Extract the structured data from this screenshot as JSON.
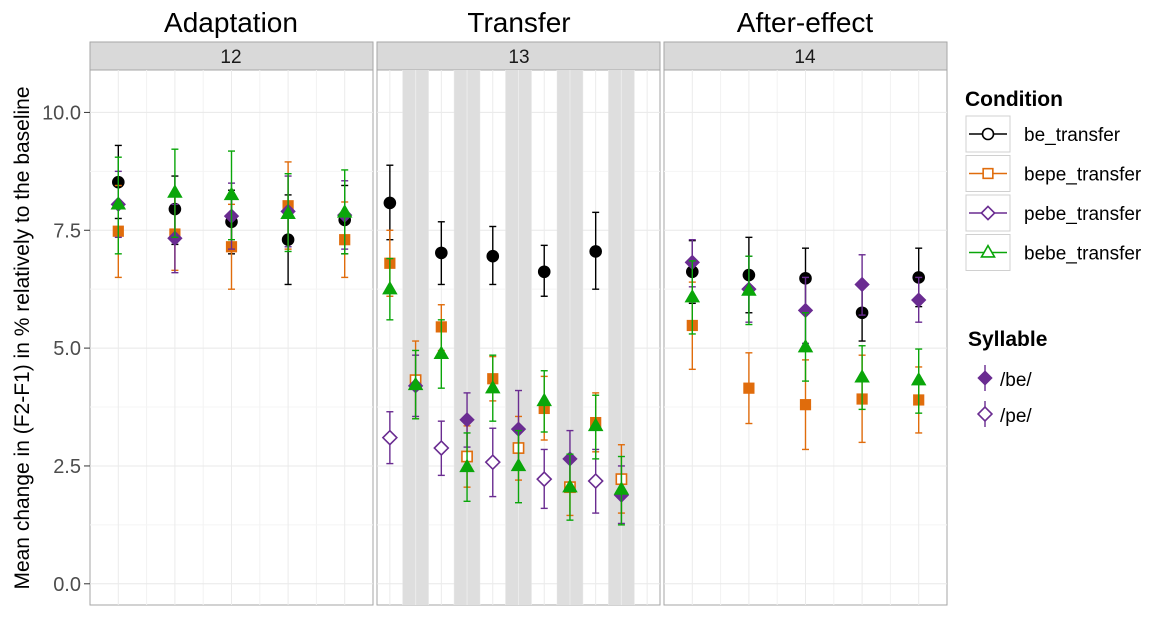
{
  "chart_data": {
    "type": "scatter",
    "ylabel": "Mean change in (F2-F1) in % relatively to the baseline",
    "ylim": [
      -0.45,
      10.9
    ],
    "y_ticks": [
      0.0,
      2.5,
      5.0,
      7.5,
      10.0
    ],
    "y_tick_labels": [
      "0.0",
      "2.5",
      "5.0",
      "7.5",
      "10.0"
    ],
    "grid": true,
    "panels": [
      {
        "title": "Adaptation",
        "strip": "12",
        "n_positions": 5,
        "shaded_positions": [],
        "points": [
          {
            "cond": "be_transfer",
            "syll": "/be/",
            "pos": 1,
            "y": 8.52,
            "lo": 7.75,
            "hi": 9.3
          },
          {
            "cond": "be_transfer",
            "syll": "/be/",
            "pos": 2,
            "y": 7.95,
            "lo": 7.2,
            "hi": 8.65
          },
          {
            "cond": "be_transfer",
            "syll": "/be/",
            "pos": 3,
            "y": 7.68,
            "lo": 7.0,
            "hi": 8.35
          },
          {
            "cond": "be_transfer",
            "syll": "/be/",
            "pos": 4,
            "y": 7.3,
            "lo": 6.35,
            "hi": 8.25
          },
          {
            "cond": "be_transfer",
            "syll": "/be/",
            "pos": 5,
            "y": 7.72,
            "lo": 7.0,
            "hi": 8.45
          },
          {
            "cond": "bepe_transfer",
            "syll": "/be/",
            "pos": 1,
            "y": 7.48,
            "lo": 6.5,
            "hi": 8.45
          },
          {
            "cond": "bepe_transfer",
            "syll": "/be/",
            "pos": 2,
            "y": 7.42,
            "lo": 6.65,
            "hi": 8.25
          },
          {
            "cond": "bepe_transfer",
            "syll": "/be/",
            "pos": 3,
            "y": 7.15,
            "lo": 6.25,
            "hi": 8.05
          },
          {
            "cond": "bepe_transfer",
            "syll": "/be/",
            "pos": 4,
            "y": 8.02,
            "lo": 7.1,
            "hi": 8.95
          },
          {
            "cond": "bepe_transfer",
            "syll": "/be/",
            "pos": 5,
            "y": 7.3,
            "lo": 6.5,
            "hi": 8.1
          },
          {
            "cond": "pebe_transfer",
            "syll": "/be/",
            "pos": 1,
            "y": 8.05,
            "lo": 7.35,
            "hi": 8.75
          },
          {
            "cond": "pebe_transfer",
            "syll": "/be/",
            "pos": 2,
            "y": 7.33,
            "lo": 6.6,
            "hi": 8.05
          },
          {
            "cond": "pebe_transfer",
            "syll": "/be/",
            "pos": 3,
            "y": 7.8,
            "lo": 7.1,
            "hi": 8.5
          },
          {
            "cond": "pebe_transfer",
            "syll": "/be/",
            "pos": 4,
            "y": 7.9,
            "lo": 7.15,
            "hi": 8.65
          },
          {
            "cond": "pebe_transfer",
            "syll": "/be/",
            "pos": 5,
            "y": 7.82,
            "lo": 7.1,
            "hi": 8.55
          },
          {
            "cond": "bebe_transfer",
            "syll": "/be/",
            "pos": 1,
            "y": 8.05,
            "lo": 7.0,
            "hi": 9.05
          },
          {
            "cond": "bebe_transfer",
            "syll": "/be/",
            "pos": 2,
            "y": 8.3,
            "lo": 7.35,
            "hi": 9.22
          },
          {
            "cond": "bebe_transfer",
            "syll": "/be/",
            "pos": 3,
            "y": 8.25,
            "lo": 7.3,
            "hi": 9.18
          },
          {
            "cond": "bebe_transfer",
            "syll": "/be/",
            "pos": 4,
            "y": 7.85,
            "lo": 7.05,
            "hi": 8.7
          },
          {
            "cond": "bebe_transfer",
            "syll": "/be/",
            "pos": 5,
            "y": 7.88,
            "lo": 7.0,
            "hi": 8.78
          }
        ]
      },
      {
        "title": "Transfer",
        "strip": "13",
        "n_positions": 11,
        "shaded_positions": [
          2,
          4,
          6,
          8,
          10
        ],
        "points": [
          {
            "cond": "be_transfer",
            "syll": "/be/",
            "pos": 1,
            "y": 8.08,
            "lo": 7.3,
            "hi": 8.88
          },
          {
            "cond": "be_transfer",
            "syll": "/be/",
            "pos": 3,
            "y": 7.02,
            "lo": 6.35,
            "hi": 7.68
          },
          {
            "cond": "be_transfer",
            "syll": "/be/",
            "pos": 5,
            "y": 6.95,
            "lo": 6.35,
            "hi": 7.58
          },
          {
            "cond": "be_transfer",
            "syll": "/be/",
            "pos": 7,
            "y": 6.62,
            "lo": 6.1,
            "hi": 7.18
          },
          {
            "cond": "be_transfer",
            "syll": "/be/",
            "pos": 9,
            "y": 7.05,
            "lo": 6.25,
            "hi": 7.88
          },
          {
            "cond": "bepe_transfer",
            "syll": "/be/",
            "pos": 1,
            "y": 6.8,
            "lo": 6.1,
            "hi": 7.5
          },
          {
            "cond": "bepe_transfer",
            "syll": "/pe/",
            "pos": 2,
            "y": 4.32,
            "lo": 3.5,
            "hi": 5.15
          },
          {
            "cond": "bepe_transfer",
            "syll": "/be/",
            "pos": 3,
            "y": 5.45,
            "lo": 4.95,
            "hi": 5.92
          },
          {
            "cond": "bepe_transfer",
            "syll": "/pe/",
            "pos": 4,
            "y": 2.7,
            "lo": 2.05,
            "hi": 3.35
          },
          {
            "cond": "bepe_transfer",
            "syll": "/be/",
            "pos": 5,
            "y": 4.35,
            "lo": 3.88,
            "hi": 4.82
          },
          {
            "cond": "bepe_transfer",
            "syll": "/pe/",
            "pos": 6,
            "y": 2.88,
            "lo": 2.2,
            "hi": 3.55
          },
          {
            "cond": "bepe_transfer",
            "syll": "/be/",
            "pos": 7,
            "y": 3.72,
            "lo": 3.05,
            "hi": 4.4
          },
          {
            "cond": "bepe_transfer",
            "syll": "/pe/",
            "pos": 8,
            "y": 2.05,
            "lo": 1.45,
            "hi": 2.65
          },
          {
            "cond": "bepe_transfer",
            "syll": "/be/",
            "pos": 9,
            "y": 3.42,
            "lo": 2.8,
            "hi": 4.05
          },
          {
            "cond": "bepe_transfer",
            "syll": "/pe/",
            "pos": 10,
            "y": 2.22,
            "lo": 1.5,
            "hi": 2.95
          },
          {
            "cond": "pebe_transfer",
            "syll": "/pe/",
            "pos": 1,
            "y": 3.1,
            "lo": 2.55,
            "hi": 3.65
          },
          {
            "cond": "pebe_transfer",
            "syll": "/be/",
            "pos": 2,
            "y": 4.2,
            "lo": 3.55,
            "hi": 4.85
          },
          {
            "cond": "pebe_transfer",
            "syll": "/pe/",
            "pos": 3,
            "y": 2.88,
            "lo": 2.3,
            "hi": 3.45
          },
          {
            "cond": "pebe_transfer",
            "syll": "/be/",
            "pos": 4,
            "y": 3.48,
            "lo": 2.9,
            "hi": 4.05
          },
          {
            "cond": "pebe_transfer",
            "syll": "/pe/",
            "pos": 5,
            "y": 2.58,
            "lo": 1.85,
            "hi": 3.3
          },
          {
            "cond": "pebe_transfer",
            "syll": "/be/",
            "pos": 6,
            "y": 3.28,
            "lo": 2.45,
            "hi": 4.1
          },
          {
            "cond": "pebe_transfer",
            "syll": "/pe/",
            "pos": 7,
            "y": 2.22,
            "lo": 1.6,
            "hi": 2.85
          },
          {
            "cond": "pebe_transfer",
            "syll": "/be/",
            "pos": 8,
            "y": 2.65,
            "lo": 2.05,
            "hi": 3.25
          },
          {
            "cond": "pebe_transfer",
            "syll": "/pe/",
            "pos": 9,
            "y": 2.18,
            "lo": 1.5,
            "hi": 2.85
          },
          {
            "cond": "pebe_transfer",
            "syll": "/be/",
            "pos": 10,
            "y": 1.88,
            "lo": 1.28,
            "hi": 2.5
          },
          {
            "cond": "bebe_transfer",
            "syll": "/be/",
            "pos": 1,
            "y": 6.25,
            "lo": 5.6,
            "hi": 6.9
          },
          {
            "cond": "bebe_transfer",
            "syll": "/be/",
            "pos": 2,
            "y": 4.22,
            "lo": 3.5,
            "hi": 4.95
          },
          {
            "cond": "bebe_transfer",
            "syll": "/be/",
            "pos": 3,
            "y": 4.88,
            "lo": 4.15,
            "hi": 5.6
          },
          {
            "cond": "bebe_transfer",
            "syll": "/be/",
            "pos": 4,
            "y": 2.48,
            "lo": 1.75,
            "hi": 3.2
          },
          {
            "cond": "bebe_transfer",
            "syll": "/be/",
            "pos": 5,
            "y": 4.15,
            "lo": 3.45,
            "hi": 4.85
          },
          {
            "cond": "bebe_transfer",
            "syll": "/be/",
            "pos": 6,
            "y": 2.5,
            "lo": 1.72,
            "hi": 3.25
          },
          {
            "cond": "bebe_transfer",
            "syll": "/be/",
            "pos": 7,
            "y": 3.88,
            "lo": 3.22,
            "hi": 4.52
          },
          {
            "cond": "bebe_transfer",
            "syll": "/be/",
            "pos": 8,
            "y": 2.05,
            "lo": 1.35,
            "hi": 2.75
          },
          {
            "cond": "bebe_transfer",
            "syll": "/be/",
            "pos": 9,
            "y": 3.35,
            "lo": 2.65,
            "hi": 4.0
          },
          {
            "cond": "bebe_transfer",
            "syll": "/be/",
            "pos": 10,
            "y": 2.0,
            "lo": 1.25,
            "hi": 2.7
          }
        ]
      },
      {
        "title": "After-effect",
        "strip": "14",
        "n_positions": 5,
        "shaded_positions": [],
        "points": [
          {
            "cond": "be_transfer",
            "syll": "/be/",
            "pos": 1,
            "y": 6.62,
            "lo": 5.95,
            "hi": 7.28
          },
          {
            "cond": "be_transfer",
            "syll": "/be/",
            "pos": 2,
            "y": 6.55,
            "lo": 5.75,
            "hi": 7.35
          },
          {
            "cond": "be_transfer",
            "syll": "/be/",
            "pos": 3,
            "y": 6.48,
            "lo": 5.85,
            "hi": 7.12
          },
          {
            "cond": "be_transfer",
            "syll": "/be/",
            "pos": 4,
            "y": 5.75,
            "lo": 5.15,
            "hi": 6.35
          },
          {
            "cond": "be_transfer",
            "syll": "/be/",
            "pos": 5,
            "y": 6.5,
            "lo": 5.88,
            "hi": 7.12
          },
          {
            "cond": "bepe_transfer",
            "syll": "/be/",
            "pos": 1,
            "y": 5.48,
            "lo": 4.55,
            "hi": 6.4
          },
          {
            "cond": "bepe_transfer",
            "syll": "/be/",
            "pos": 2,
            "y": 4.15,
            "lo": 3.4,
            "hi": 4.9
          },
          {
            "cond": "bepe_transfer",
            "syll": "/be/",
            "pos": 3,
            "y": 3.8,
            "lo": 2.85,
            "hi": 4.75
          },
          {
            "cond": "bepe_transfer",
            "syll": "/be/",
            "pos": 4,
            "y": 3.92,
            "lo": 3.0,
            "hi": 4.85
          },
          {
            "cond": "bepe_transfer",
            "syll": "/be/",
            "pos": 5,
            "y": 3.9,
            "lo": 3.2,
            "hi": 4.6
          },
          {
            "cond": "pebe_transfer",
            "syll": "/be/",
            "pos": 1,
            "y": 6.82,
            "lo": 6.3,
            "hi": 7.3
          },
          {
            "cond": "pebe_transfer",
            "syll": "/be/",
            "pos": 2,
            "y": 6.25,
            "lo": 5.55,
            "hi": 6.95
          },
          {
            "cond": "pebe_transfer",
            "syll": "/be/",
            "pos": 3,
            "y": 5.8,
            "lo": 5.1,
            "hi": 6.5
          },
          {
            "cond": "pebe_transfer",
            "syll": "/be/",
            "pos": 4,
            "y": 6.35,
            "lo": 5.7,
            "hi": 6.98
          },
          {
            "cond": "pebe_transfer",
            "syll": "/be/",
            "pos": 5,
            "y": 6.02,
            "lo": 5.55,
            "hi": 6.5
          },
          {
            "cond": "bebe_transfer",
            "syll": "/be/",
            "pos": 1,
            "y": 6.08,
            "lo": 5.3,
            "hi": 6.85
          },
          {
            "cond": "bebe_transfer",
            "syll": "/be/",
            "pos": 2,
            "y": 6.22,
            "lo": 5.5,
            "hi": 6.95
          },
          {
            "cond": "bebe_transfer",
            "syll": "/be/",
            "pos": 3,
            "y": 5.02,
            "lo": 4.3,
            "hi": 5.75
          },
          {
            "cond": "bebe_transfer",
            "syll": "/be/",
            "pos": 4,
            "y": 4.38,
            "lo": 3.7,
            "hi": 5.05
          },
          {
            "cond": "bebe_transfer",
            "syll": "/be/",
            "pos": 5,
            "y": 4.32,
            "lo": 3.62,
            "hi": 4.98
          }
        ]
      }
    ],
    "legend": {
      "placement": "right",
      "condition_title": "Condition",
      "conditions": [
        {
          "name": "be_transfer",
          "color": "#000000",
          "shape": "circle"
        },
        {
          "name": "bepe_transfer",
          "color": "#e06c0c",
          "shape": "square"
        },
        {
          "name": "pebe_transfer",
          "color": "#6a2c91",
          "shape": "diamond"
        },
        {
          "name": "bebe_transfer",
          "color": "#0aa60a",
          "shape": "triangle"
        }
      ],
      "syllable_title": "Syllable",
      "syllables": [
        {
          "name": "/be/",
          "fill": "filled",
          "color": "#6a2c91"
        },
        {
          "name": "/pe/",
          "fill": "open",
          "color": "#6a2c91"
        }
      ]
    }
  }
}
